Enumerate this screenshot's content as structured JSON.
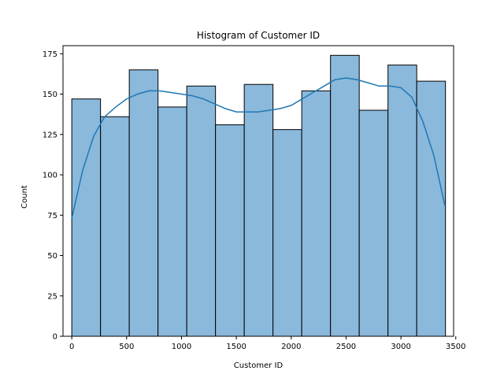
{
  "chart_data": {
    "type": "bar",
    "title": "Histogram of Customer ID",
    "xlabel": "Customer ID",
    "ylabel": "Count",
    "xlim": [
      -80,
      3480
    ],
    "ylim": [
      0,
      180
    ],
    "xticks": [
      0,
      500,
      1000,
      1500,
      2000,
      2500,
      3000,
      3500
    ],
    "yticks": [
      0,
      25,
      50,
      75,
      100,
      125,
      150,
      175
    ],
    "bin_edges": [
      0,
      262,
      524,
      786,
      1048,
      1310,
      1572,
      1834,
      2096,
      2358,
      2620,
      2882,
      3144,
      3406
    ],
    "counts": [
      147,
      136,
      165,
      142,
      155,
      131,
      156,
      128,
      152,
      174,
      140,
      168,
      158
    ],
    "kde": {
      "x": [
        0,
        100,
        200,
        300,
        400,
        500,
        600,
        700,
        800,
        900,
        1000,
        1100,
        1200,
        1300,
        1400,
        1500,
        1600,
        1700,
        1800,
        1900,
        2000,
        2100,
        2200,
        2300,
        2400,
        2500,
        2600,
        2700,
        2800,
        2900,
        3000,
        3100,
        3200,
        3300,
        3400
      ],
      "y": [
        73,
        103,
        124,
        136,
        142,
        147,
        150,
        152,
        152,
        151,
        150,
        149,
        147,
        144,
        141,
        139,
        139,
        139,
        140,
        141,
        143,
        147,
        151,
        155,
        159,
        160,
        159,
        157,
        155,
        155,
        154,
        148,
        133,
        112,
        81
      ]
    },
    "grid": false,
    "colors": {
      "bar_fill": "#8ab9dc",
      "bar_edge": "#000000",
      "kde_line": "#1f77b4"
    }
  }
}
